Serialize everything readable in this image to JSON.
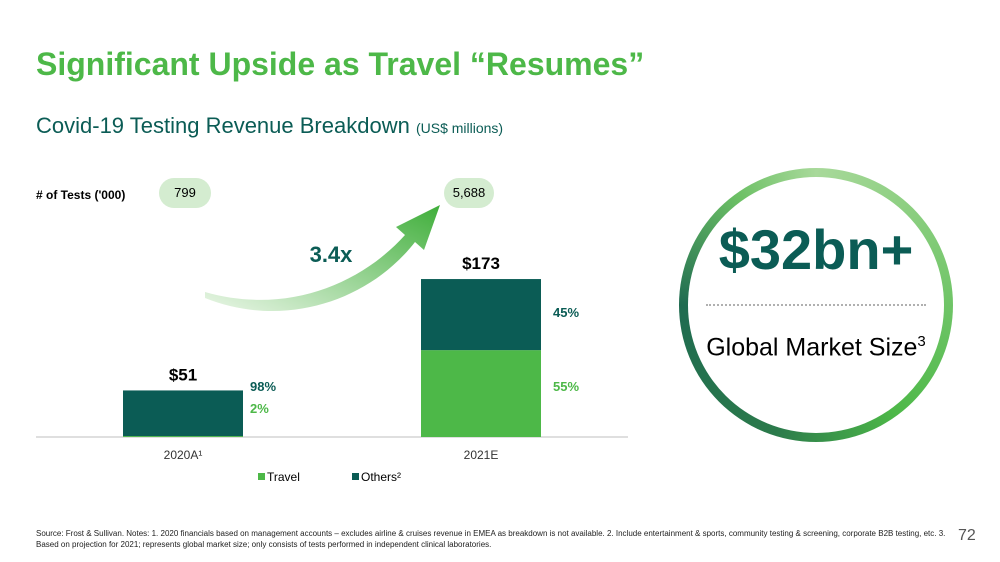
{
  "header": {
    "title": "Significant Upside as Travel “Resumes”"
  },
  "chart_data": {
    "type": "bar",
    "stacked": true,
    "title": "Covid-19 Testing Revenue Breakdown",
    "title_units": "(US$ millions)",
    "categories": [
      "2020A¹",
      "2021E"
    ],
    "totals": [
      51,
      173
    ],
    "total_labels": [
      "$51",
      "$173"
    ],
    "series": [
      {
        "name": "Travel",
        "color": "#4db848",
        "values": [
          1.02,
          95.15
        ],
        "share_labels": [
          "2%",
          "55%"
        ]
      },
      {
        "name": "Others²",
        "color": "#0b5c55",
        "values": [
          49.98,
          77.85
        ],
        "share_labels": [
          "98%",
          "45%"
        ]
      }
    ],
    "ylim": [
      0,
      200
    ],
    "grid": false,
    "legend": "bottom",
    "tests": {
      "label": "# of Tests ('000)",
      "values": [
        "799",
        "5,688"
      ]
    },
    "growth_label": "3.4x"
  },
  "market": {
    "value": "$32bn+",
    "label": "Global Market Size",
    "label_sup": "3"
  },
  "footnote": "Source: Frost & Sullivan. Notes: 1. 2020 financials based on management accounts – excludes airline & cruises revenue in EMEA as breakdown is not available. 2. Include entertainment & sports, community testing & screening, corporate B2B testing, etc. 3. Based on projection for 2021; represents global market size; only consists of tests performed in independent clinical laboratories.",
  "page_number": "72",
  "colors": {
    "brand_green": "#4db848",
    "dark_teal": "#0b5c55",
    "pill_bg": "#d4ecd0"
  }
}
